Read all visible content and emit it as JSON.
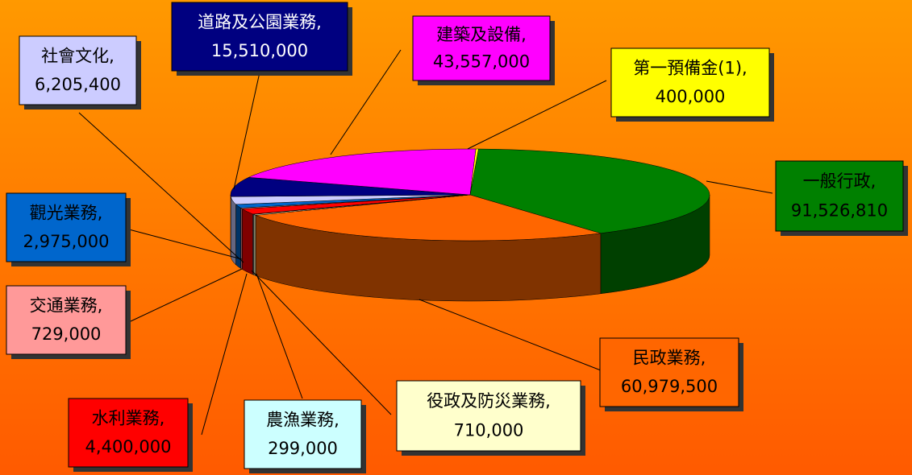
{
  "chart_data": {
    "type": "pie",
    "categories": [
      "一般行政,",
      "民政業務,",
      "役政及防災業務,",
      "農漁業務,",
      "水利業務,",
      "交通業務,",
      "觀光業務,",
      "社會文化,",
      "道路及公園業務,",
      "建築及設備,",
      "第一預備金(1),"
    ],
    "values": [
      91526810,
      60979500,
      710000,
      299000,
      4400000,
      729000,
      2975000,
      6205400,
      15510000,
      43557000,
      400000
    ],
    "value_labels": [
      "91,526,810",
      "60,979,500",
      "710,000",
      "299,000",
      "4,400,000",
      "729,000",
      "2,975,000",
      "6,205,400",
      "15,510,000",
      "43,557,000",
      "400,000"
    ],
    "colors": [
      "#008000",
      "#ff6600",
      "#ffffcc",
      "#ccffff",
      "#ff0000",
      "#ff9999",
      "#0066cc",
      "#ccccff",
      "#000080",
      "#ff00ff",
      "#ffff00"
    ]
  }
}
